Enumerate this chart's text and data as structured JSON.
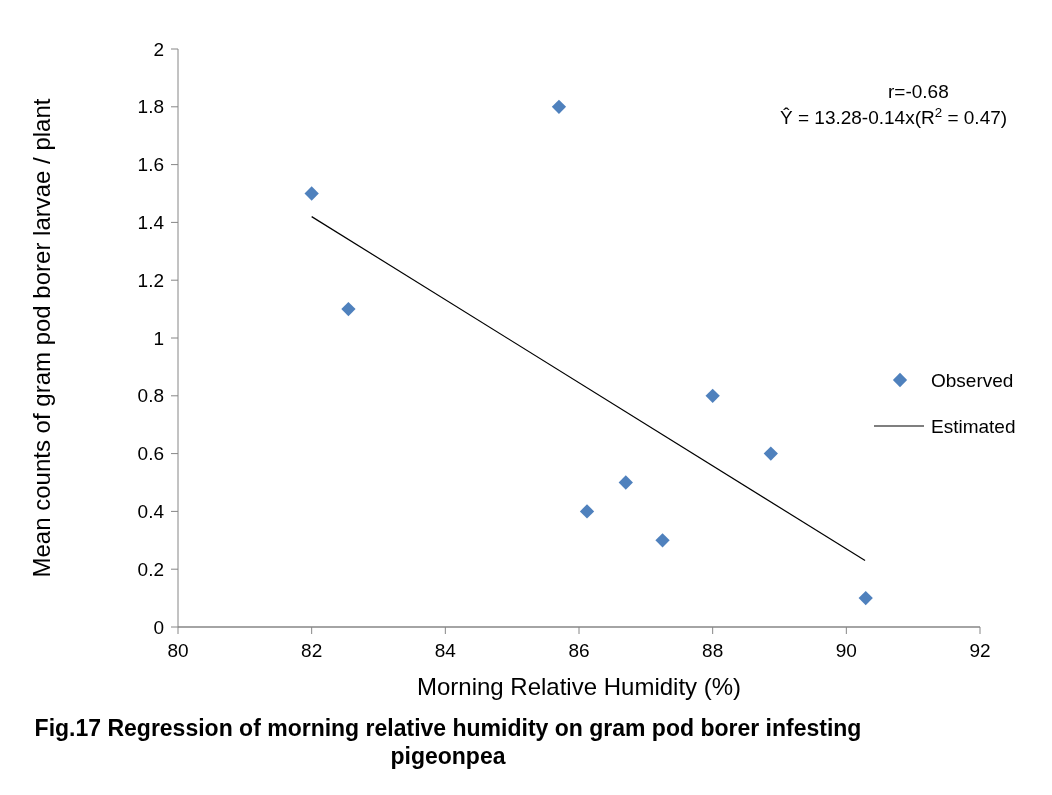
{
  "chart_data": {
    "type": "scatter",
    "title": "Fig.17 Regression of morning relative humidity on gram pod borer infesting pigeonpea",
    "xlabel": "Morning Relative Humidity (%)",
    "ylabel": "Mean counts of gram pod borer larvae / plant",
    "annotations": [
      "r=-0.68",
      "Ŷ = 13.28-0.14x(R$^{2}$ = 0.47)"
    ],
    "series": [
      {
        "name": "Observed",
        "color": "#4f81bd",
        "marker": "diamond",
        "x": [
          82.0,
          82.55,
          85.7,
          86.12,
          86.7,
          87.25,
          88.0,
          88.87,
          90.29
        ],
        "values": [
          1.5,
          1.1,
          1.8,
          0.4,
          0.5,
          0.3,
          0.8,
          0.6,
          0.1
        ]
      },
      {
        "name": "Estimated",
        "type": "line",
        "color": "#000000",
        "marker": "none",
        "x": [
          82.0,
          90.28
        ],
        "values": [
          1.42,
          0.23
        ]
      }
    ],
    "xlim": [
      80,
      92
    ],
    "xticks": [
      80,
      82,
      84,
      86,
      88,
      90,
      92
    ],
    "ylim": [
      0,
      2
    ],
    "yticks": [
      0,
      0.2,
      0.4,
      0.6,
      0.8,
      1,
      1.2,
      1.4,
      1.6,
      1.8,
      2
    ],
    "grid": false,
    "legend": "right"
  }
}
